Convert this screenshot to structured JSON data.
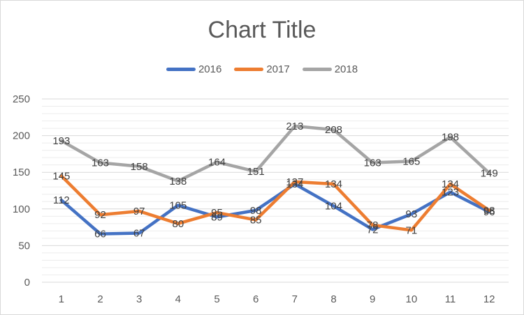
{
  "chart_data": {
    "type": "line",
    "title": "Chart Title",
    "xlabel": "",
    "ylabel": "",
    "categories": [
      "1",
      "2",
      "3",
      "4",
      "5",
      "6",
      "7",
      "8",
      "9",
      "10",
      "11",
      "12"
    ],
    "ylim": [
      0,
      250
    ],
    "yticks": [
      0,
      50,
      100,
      150,
      200,
      250
    ],
    "grid": true,
    "legend_position": "top",
    "series": [
      {
        "name": "2016",
        "color": "#4472c4",
        "values": [
          112,
          66,
          67,
          105,
          89,
          98,
          134,
          104,
          72,
          93,
          123,
          96
        ]
      },
      {
        "name": "2017",
        "color": "#ed7d31",
        "values": [
          145,
          92,
          97,
          80,
          95,
          85,
          137,
          134,
          78,
          71,
          134,
          98
        ]
      },
      {
        "name": "2018",
        "color": "#a5a5a5",
        "values": [
          193,
          163,
          158,
          138,
          164,
          151,
          213,
          208,
          163,
          165,
          198,
          149
        ]
      }
    ]
  }
}
